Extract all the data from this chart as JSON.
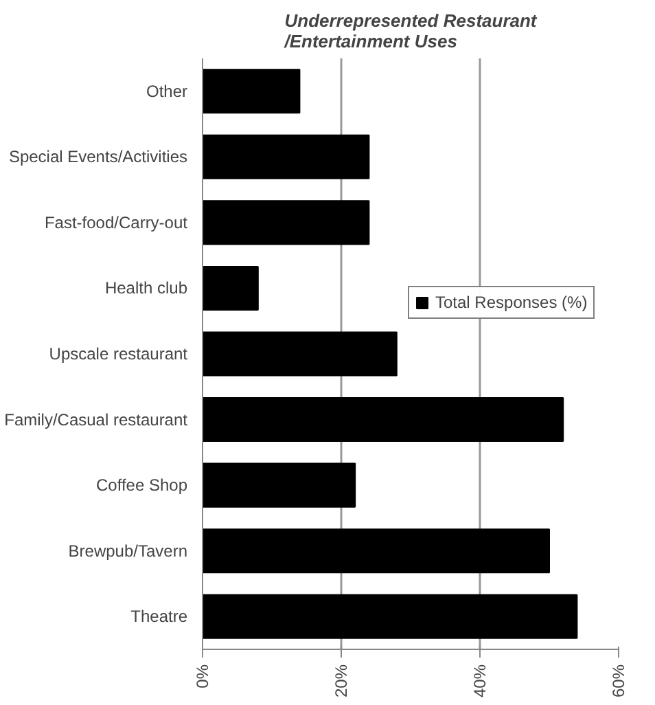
{
  "chart_data": {
    "type": "bar",
    "orientation": "horizontal",
    "title": "Underrepresented Restaurant\n/Entertainment Uses",
    "categories": [
      "Other",
      "Special Events/Activities",
      "Fast-food/Carry-out",
      "Health club",
      "Upscale restaurant",
      "Family/Casual restaurant",
      "Coffee Shop",
      "Brewpub/Tavern",
      "Theatre"
    ],
    "series": [
      {
        "name": "Total Responses (%)",
        "color": "#000000",
        "values": [
          14,
          24,
          24,
          8,
          28,
          52,
          22,
          50,
          54
        ]
      }
    ],
    "xlim": [
      0,
      60
    ],
    "xticks": [
      {
        "value": 0,
        "label": "0%"
      },
      {
        "value": 20,
        "label": "20%"
      },
      {
        "value": 40,
        "label": "40%"
      },
      {
        "value": 60,
        "label": "60%"
      }
    ],
    "grid": "x",
    "legend": "right"
  }
}
